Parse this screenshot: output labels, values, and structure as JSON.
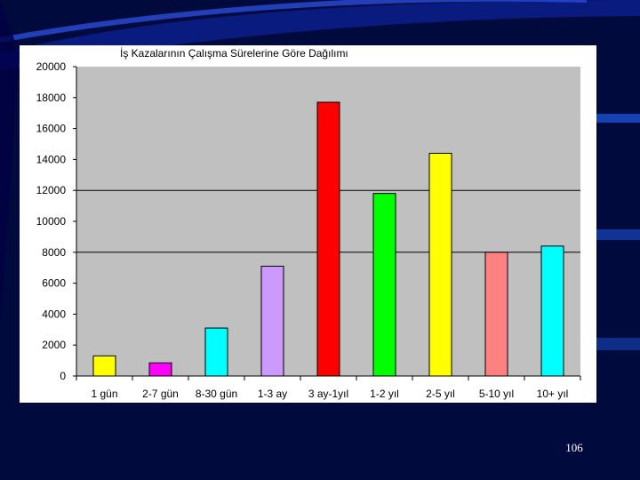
{
  "page_number": "106",
  "colors": {
    "slide_background": "#000a3c",
    "plot_area": "#c0c0c0",
    "chart_panel": "#ffffff"
  },
  "chart_data": {
    "type": "bar",
    "title": "İş Kazalarının Çalışma Sürelerine Göre Dağılımı",
    "xlabel": "",
    "ylabel": "",
    "categories": [
      "1 gün",
      "2-7 gün",
      "8-30 gün",
      "1-3 ay",
      "3 ay-1yıl",
      "1-2 yıl",
      "2-5 yıl",
      "5-10 yıl",
      "10+ yıl"
    ],
    "values": [
      1300,
      850,
      3100,
      7100,
      17700,
      11800,
      14400,
      8000,
      8400
    ],
    "colors": [
      "#ffff00",
      "#ff00ff",
      "#00ffff",
      "#cc99ff",
      "#ff0000",
      "#00ff00",
      "#ffff00",
      "#ff8080",
      "#00ffff"
    ],
    "ylim": [
      0,
      20000
    ],
    "yticks": [
      0,
      2000,
      4000,
      6000,
      8000,
      10000,
      12000,
      14000,
      16000,
      18000,
      20000
    ],
    "major_gridlines": [
      8000,
      12000
    ],
    "grid": false,
    "legend": "none"
  }
}
